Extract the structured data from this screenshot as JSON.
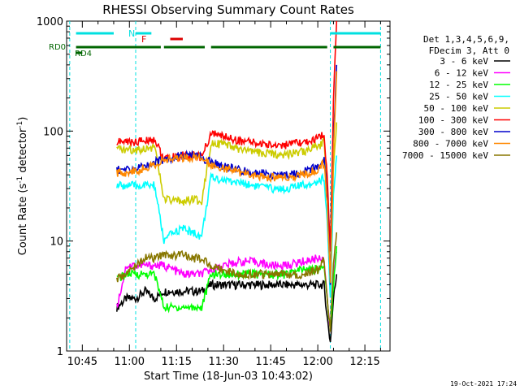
{
  "chart_data": {
    "type": "line",
    "title": "RHESSI Observing Summary Count Rates",
    "xlabel": "Start Time (18-Jun-03 10:43:02)",
    "ylabel_main": "Count Rate (s",
    "ylabel_sup1": "-1",
    "ylabel_mid": " detector",
    "ylabel_sup2": "-1",
    "ylabel_end": ")",
    "y_scale": "log",
    "xlim": [
      "10:40",
      "12:23"
    ],
    "ylim": [
      1,
      1000
    ],
    "x_ticks": [
      "10:45",
      "11:00",
      "11:15",
      "11:30",
      "11:45",
      "12:00",
      "12:15"
    ],
    "y_ticks": [
      "1",
      "10",
      "100",
      "1000"
    ],
    "legend_header": [
      "Det 1,3,4,5,6,9,",
      "FDecim 3, Att 0"
    ],
    "legend": [
      {
        "label": "3 - 6 keV",
        "color": "#000000"
      },
      {
        "label": "6 - 12 keV",
        "color": "#ff00ff"
      },
      {
        "label": "12 - 25 keV",
        "color": "#00ff00"
      },
      {
        "label": "25 - 50 keV",
        "color": "#00ffff"
      },
      {
        "label": "50 - 100 keV",
        "color": "#cccc00"
      },
      {
        "label": "100 - 300 keV",
        "color": "#ff0000"
      },
      {
        "label": "300 - 800 keV",
        "color": "#0000cc"
      },
      {
        "label": "800 - 7000 keV",
        "color": "#ff8800"
      },
      {
        "label": "7000 - 15000 keV",
        "color": "#887700"
      }
    ],
    "flags": {
      "n_label": "N",
      "f_label": "F",
      "rd0_label": "RD0",
      "rd4_label": "RD4",
      "n_segments": [
        [
          "10:43",
          "10:55"
        ],
        [
          "11:02",
          "11:07"
        ],
        [
          "12:04",
          "12:20"
        ]
      ],
      "f_segments": [
        [
          "11:13",
          "11:17"
        ]
      ],
      "rd0_segments": [
        [
          "10:43",
          "11:10"
        ],
        [
          "11:11",
          "11:24"
        ],
        [
          "11:26",
          "12:03"
        ],
        [
          "12:05",
          "12:20"
        ]
      ],
      "rd4_segments": [
        [
          "10:43",
          "10:45"
        ]
      ]
    },
    "night_boundaries": [
      "10:41",
      "11:02",
      "12:04",
      "12:20"
    ],
    "gaps": [
      [
        "10:40",
        "10:56"
      ],
      [
        "12:04.5",
        "12:05.5"
      ]
    ],
    "series": [
      {
        "name": "3 - 6 keV",
        "color": "#000000",
        "x": [
          "10:56",
          "10:59",
          "11:02",
          "11:05",
          "11:08",
          "11:11",
          "11:14",
          "11:17",
          "11:20",
          "11:23",
          "11:26",
          "11:30",
          "11:35",
          "11:40",
          "11:45",
          "11:50",
          "11:55",
          "12:00",
          "12:02",
          "12:03",
          "12:04",
          "12:05",
          "12:06"
        ],
        "y": [
          2.5,
          3,
          3,
          3.5,
          3,
          3.5,
          3.5,
          3.5,
          3.5,
          3.5,
          4,
          4,
          4,
          4,
          4,
          4,
          4,
          4,
          4,
          2,
          1.2,
          3,
          5
        ]
      },
      {
        "name": "6 - 12 keV",
        "color": "#ff00ff",
        "x": [
          "10:56",
          "10:59",
          "11:02",
          "11:05",
          "11:08",
          "11:11",
          "11:14",
          "11:17",
          "11:20",
          "11:23",
          "11:26",
          "11:30",
          "11:35",
          "11:40",
          "11:45",
          "11:50",
          "11:55",
          "12:00",
          "12:02",
          "12:03",
          "12:04",
          "12:05",
          "12:06"
        ],
        "y": [
          2.5,
          6,
          6,
          6,
          6,
          6,
          5.5,
          5,
          5,
          5,
          5.5,
          6,
          6.5,
          6.5,
          6,
          6,
          6.5,
          7,
          7,
          3,
          1.5,
          5,
          8
        ]
      },
      {
        "name": "12 - 25 keV",
        "color": "#00ff00",
        "x": [
          "10:56",
          "10:59",
          "11:02",
          "11:05",
          "11:08",
          "11:11",
          "11:14",
          "11:17",
          "11:20",
          "11:23",
          "11:26",
          "11:30",
          "11:35",
          "11:40",
          "11:45",
          "11:50",
          "11:55",
          "12:00",
          "12:02",
          "12:03",
          "12:04",
          "12:05",
          "12:06"
        ],
        "y": [
          4.5,
          5,
          5,
          5,
          5,
          2.5,
          2.5,
          2.5,
          2.5,
          2.5,
          5,
          5,
          5,
          5,
          5,
          5,
          5.5,
          5.5,
          6,
          3,
          1.5,
          4,
          9
        ]
      },
      {
        "name": "25 - 50 keV",
        "color": "#00ffff",
        "x": [
          "10:56",
          "10:59",
          "11:02",
          "11:05",
          "11:08",
          "11:11",
          "11:14",
          "11:17",
          "11:20",
          "11:23",
          "11:26",
          "11:30",
          "11:35",
          "11:40",
          "11:45",
          "11:50",
          "11:55",
          "12:00",
          "12:02",
          "12:03",
          "12:04",
          "12:05",
          "12:06"
        ],
        "y": [
          32,
          32,
          32,
          32,
          32,
          10,
          12,
          13,
          12,
          11,
          38,
          36,
          34,
          32,
          30,
          30,
          32,
          35,
          38,
          15,
          3,
          25,
          60
        ]
      },
      {
        "name": "50 - 100 keV",
        "color": "#cccc00",
        "x": [
          "10:56",
          "10:59",
          "11:02",
          "11:05",
          "11:08",
          "11:11",
          "11:14",
          "11:17",
          "11:20",
          "11:23",
          "11:26",
          "11:30",
          "11:35",
          "11:40",
          "11:45",
          "11:50",
          "11:55",
          "12:00",
          "12:02",
          "12:03",
          "12:04",
          "12:05",
          "12:06"
        ],
        "y": [
          68,
          68,
          68,
          70,
          72,
          24,
          23,
          23,
          24,
          23,
          80,
          75,
          68,
          64,
          62,
          62,
          65,
          72,
          80,
          30,
          5,
          50,
          120
        ]
      },
      {
        "name": "100 - 300 keV",
        "color": "#ff0000",
        "x": [
          "10:56",
          "10:59",
          "11:02",
          "11:05",
          "11:08",
          "11:11",
          "11:14",
          "11:17",
          "11:20",
          "11:23",
          "11:26",
          "11:30",
          "11:35",
          "11:40",
          "11:45",
          "11:50",
          "11:55",
          "12:00",
          "12:02",
          "12:03",
          "12:04",
          "12:05",
          "12:06"
        ],
        "y": [
          80,
          80,
          80,
          82,
          85,
          55,
          58,
          60,
          60,
          58,
          95,
          90,
          82,
          78,
          75,
          75,
          78,
          85,
          95,
          40,
          8,
          200,
          1000
        ]
      },
      {
        "name": "300 - 800 keV",
        "color": "#0000cc",
        "x": [
          "10:56",
          "10:59",
          "11:02",
          "11:05",
          "11:08",
          "11:11",
          "11:14",
          "11:17",
          "11:20",
          "11:23",
          "11:26",
          "11:30",
          "11:35",
          "11:40",
          "11:45",
          "11:50",
          "11:55",
          "12:00",
          "12:02",
          "12:03",
          "12:04",
          "12:05",
          "12:06"
        ],
        "y": [
          45,
          44,
          46,
          48,
          52,
          55,
          58,
          60,
          60,
          58,
          52,
          48,
          44,
          42,
          40,
          40,
          42,
          48,
          55,
          25,
          4,
          80,
          400
        ]
      },
      {
        "name": "800 - 7000 keV",
        "color": "#ff8800",
        "x": [
          "10:56",
          "10:59",
          "11:02",
          "11:05",
          "11:08",
          "11:11",
          "11:14",
          "11:17",
          "11:20",
          "11:23",
          "11:26",
          "11:30",
          "11:35",
          "11:40",
          "11:45",
          "11:50",
          "11:55",
          "12:00",
          "12:02",
          "12:03",
          "12:04",
          "12:05",
          "12:06"
        ],
        "y": [
          42,
          42,
          44,
          46,
          50,
          54,
          56,
          58,
          58,
          56,
          50,
          46,
          42,
          40,
          38,
          38,
          40,
          45,
          52,
          22,
          4,
          70,
          350
        ]
      },
      {
        "name": "7000 - 15000 keV",
        "color": "#887700",
        "x": [
          "10:56",
          "10:59",
          "11:02",
          "11:05",
          "11:08",
          "11:11",
          "11:14",
          "11:17",
          "11:20",
          "11:23",
          "11:26",
          "11:30",
          "11:35",
          "11:40",
          "11:45",
          "11:50",
          "11:55",
          "12:00",
          "12:02",
          "12:03",
          "12:04",
          "12:05",
          "12:06"
        ],
        "y": [
          4.5,
          5,
          6,
          7,
          7,
          7.5,
          7.5,
          7.5,
          7,
          7,
          6,
          5.5,
          5,
          5,
          5,
          5,
          5,
          5.5,
          7,
          3,
          1.5,
          6,
          12
        ]
      }
    ]
  },
  "footer": {
    "timestamp": "19-Oct-2021 17:24"
  }
}
